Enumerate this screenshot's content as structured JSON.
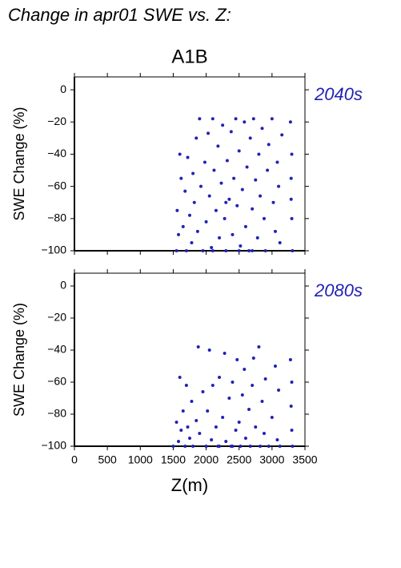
{
  "header": {
    "title": "Change in apr01 SWE vs. Z:"
  },
  "chart_data": [
    {
      "type": "scatter",
      "title": "A1B",
      "label": "2040s",
      "ylabel": "SWE Change (%)",
      "color": "#2222b4",
      "xlim": [
        0,
        3500
      ],
      "xticks": [
        0,
        500,
        1000,
        1500,
        2000,
        2500,
        3000,
        3500
      ],
      "ylim": [
        -100,
        8
      ],
      "yticks": [
        {
          "value": 0,
          "label": "0"
        },
        {
          "value": -20,
          "label": "−20"
        },
        {
          "value": -40,
          "label": "−40"
        },
        {
          "value": -60,
          "label": "−60"
        },
        {
          "value": -80,
          "label": "−80"
        },
        {
          "value": -100,
          "label": "−100"
        }
      ],
      "x": [
        1550,
        1560,
        1580,
        1600,
        1620,
        1650,
        1680,
        1700,
        1720,
        1750,
        1780,
        1800,
        1820,
        1850,
        1870,
        1900,
        1920,
        1950,
        1980,
        2000,
        2030,
        2050,
        2080,
        2100,
        2120,
        2150,
        2180,
        2200,
        2230,
        2250,
        2280,
        2300,
        2320,
        2350,
        2380,
        2400,
        2420,
        2450,
        2470,
        2500,
        2520,
        2550,
        2580,
        2600,
        2620,
        2650,
        2670,
        2700,
        2720,
        2750,
        2780,
        2800,
        2820,
        2850,
        2880,
        2900,
        2930,
        2950,
        3000,
        3020,
        3050,
        3080,
        3100,
        3120,
        3150,
        3280,
        3290,
        3300,
        3310,
        3300,
        3290,
        2700,
        2500,
        2300,
        2100
      ],
      "values": [
        -100,
        -75,
        -90,
        -40,
        -55,
        -85,
        -63,
        -100,
        -42,
        -78,
        -95,
        -52,
        -70,
        -30,
        -88,
        -18,
        -60,
        -100,
        -45,
        -82,
        -27,
        -66,
        -98,
        -18,
        -50,
        -75,
        -35,
        -92,
        -58,
        -22,
        -80,
        -100,
        -44,
        -68,
        -26,
        -90,
        -55,
        -18,
        -72,
        -38,
        -97,
        -62,
        -20,
        -85,
        -48,
        -100,
        -30,
        -74,
        -18,
        -56,
        -92,
        -40,
        -66,
        -24,
        -80,
        -100,
        -50,
        -34,
        -18,
        -70,
        -88,
        -45,
        -60,
        -95,
        -28,
        -20,
        -55,
        -80,
        -100,
        -40,
        -68,
        -100,
        -100,
        -70,
        -100
      ]
    },
    {
      "type": "scatter",
      "label": "2080s",
      "ylabel": "SWE Change (%)",
      "xlabel": "Z(m)",
      "color": "#2222b4",
      "xlim": [
        0,
        3500
      ],
      "xticks": [
        0,
        500,
        1000,
        1500,
        2000,
        2500,
        3000,
        3500
      ],
      "ylim": [
        -100,
        8
      ],
      "yticks": [
        {
          "value": 0,
          "label": "0"
        },
        {
          "value": -20,
          "label": "−20"
        },
        {
          "value": -40,
          "label": "−40"
        },
        {
          "value": -60,
          "label": "−60"
        },
        {
          "value": -80,
          "label": "−80"
        },
        {
          "value": -100,
          "label": "−100"
        }
      ],
      "x": [
        1500,
        1550,
        1580,
        1600,
        1620,
        1650,
        1680,
        1700,
        1720,
        1750,
        1780,
        1800,
        1850,
        1880,
        1900,
        1950,
        2000,
        2020,
        2050,
        2080,
        2100,
        2150,
        2180,
        2200,
        2250,
        2280,
        2300,
        2350,
        2380,
        2400,
        2450,
        2470,
        2500,
        2520,
        2550,
        2580,
        2600,
        2650,
        2670,
        2700,
        2720,
        2750,
        2800,
        2820,
        2850,
        2880,
        2900,
        2950,
        3000,
        3050,
        3080,
        3100,
        3120,
        3280,
        3290,
        3300,
        3310,
        3300,
        2400,
        2200
      ],
      "values": [
        -100,
        -85,
        -97,
        -57,
        -90,
        -78,
        -100,
        -62,
        -88,
        -95,
        -72,
        -100,
        -84,
        -38,
        -92,
        -66,
        -100,
        -78,
        -40,
        -96,
        -62,
        -88,
        -100,
        -57,
        -82,
        -42,
        -97,
        -70,
        -100,
        -60,
        -90,
        -46,
        -85,
        -100,
        -68,
        -52,
        -95,
        -77,
        -100,
        -62,
        -45,
        -88,
        -38,
        -100,
        -72,
        -92,
        -58,
        -100,
        -82,
        -50,
        -96,
        -65,
        -100,
        -46,
        -75,
        -90,
        -100,
        -60,
        -100,
        -100
      ]
    }
  ]
}
